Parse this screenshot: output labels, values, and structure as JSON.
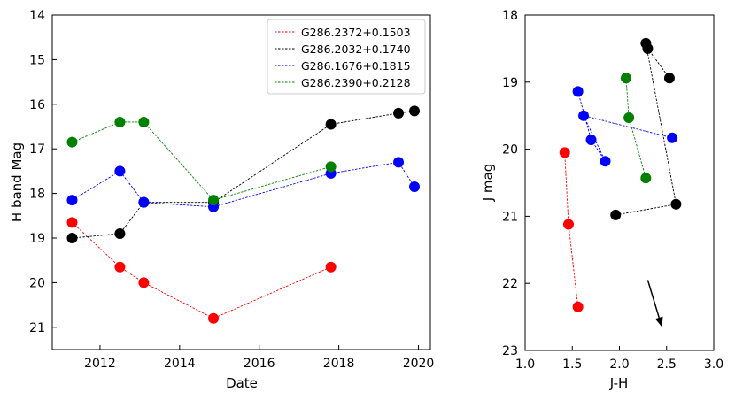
{
  "chart_data": [
    {
      "type": "line",
      "title": "",
      "xlabel": "Date",
      "ylabel": "H band Mag",
      "xlim": [
        2010.8,
        2020.3
      ],
      "ylim": [
        21.5,
        14.0
      ],
      "y_inverted": true,
      "x_ticks": [
        2012,
        2014,
        2016,
        2018,
        2020
      ],
      "x_tick_labels": [
        "2012",
        "2014",
        "2016",
        "2018",
        "2020"
      ],
      "y_ticks": [
        14,
        15,
        16,
        17,
        18,
        19,
        20,
        21
      ],
      "y_tick_labels": [
        "14",
        "15",
        "16",
        "17",
        "18",
        "19",
        "20",
        "21"
      ],
      "legend_position": "top-right",
      "series": [
        {
          "name": "G286.2372+0.1503",
          "color": "#ff0000",
          "x": [
            2011.3,
            2012.5,
            2013.1,
            2014.85,
            2017.8
          ],
          "y": [
            18.65,
            19.65,
            20.0,
            20.8,
            19.65
          ]
        },
        {
          "name": "G286.2032+0.1740",
          "color": "#000000",
          "x": [
            2011.3,
            2012.5,
            2013.1,
            2014.85,
            2017.8,
            2019.5,
            2019.9
          ],
          "y": [
            19.0,
            18.9,
            18.2,
            18.2,
            16.45,
            16.2,
            16.15
          ]
        },
        {
          "name": "G286.1676+0.1815",
          "color": "#0000ff",
          "x": [
            2011.3,
            2012.5,
            2013.1,
            2014.85,
            2017.8,
            2019.5,
            2019.9
          ],
          "y": [
            18.15,
            17.5,
            18.2,
            18.3,
            17.55,
            17.3,
            17.85
          ]
        },
        {
          "name": "G286.2390+0.2128",
          "color": "#008000",
          "x": [
            2011.3,
            2012.5,
            2013.1,
            2014.85,
            2017.8
          ],
          "y": [
            16.85,
            16.4,
            16.4,
            18.15,
            17.4
          ]
        }
      ]
    },
    {
      "type": "scatter",
      "title": "",
      "xlabel": "J-H",
      "ylabel": "J mag",
      "xlim": [
        1.0,
        3.0
      ],
      "ylim": [
        23.0,
        18.0
      ],
      "y_inverted": true,
      "x_ticks": [
        1.0,
        1.5,
        2.0,
        2.5,
        3.0
      ],
      "x_tick_labels": [
        "1.0",
        "1.5",
        "2.0",
        "2.5",
        "3.0"
      ],
      "y_ticks": [
        18,
        19,
        20,
        21,
        22,
        23
      ],
      "y_tick_labels": [
        "18",
        "19",
        "20",
        "21",
        "22",
        "23"
      ],
      "series": [
        {
          "name": "G286.2372+0.1503",
          "color": "#ff0000",
          "x": [
            1.42,
            1.46,
            1.56
          ],
          "y": [
            20.05,
            21.12,
            22.35
          ]
        },
        {
          "name": "G286.2032+0.1740",
          "color": "#000000",
          "x": [
            1.96,
            2.6,
            2.28,
            2.3,
            2.53
          ],
          "y": [
            20.98,
            20.82,
            18.42,
            18.5,
            18.94
          ]
        },
        {
          "name": "G286.1676+0.1815",
          "color": "#0000ff",
          "x": [
            1.56,
            1.7,
            1.85,
            1.62,
            2.56
          ],
          "y": [
            19.14,
            19.86,
            20.18,
            19.5,
            19.83
          ]
        },
        {
          "name": "G286.2390+0.2128",
          "color": "#008000",
          "x": [
            2.07,
            2.1,
            2.28
          ],
          "y": [
            18.94,
            19.53,
            20.43
          ]
        }
      ],
      "annotations": [
        {
          "type": "arrow",
          "x_start": 2.3,
          "y_start": 21.95,
          "x_end": 2.45,
          "y_end": 22.65
        }
      ]
    }
  ]
}
